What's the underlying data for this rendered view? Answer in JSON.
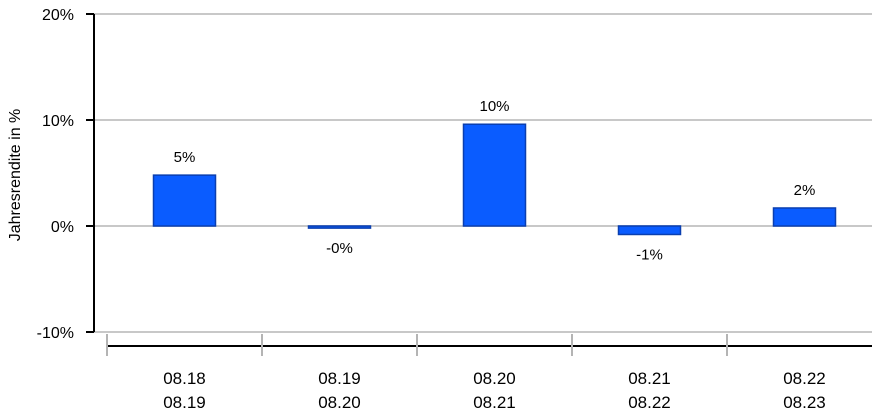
{
  "chart_data": {
    "type": "bar",
    "ylabel": "Jahresrendite in %",
    "ylim": [
      -10,
      20
    ],
    "yticks": [
      {
        "value": -10,
        "label": "-10%"
      },
      {
        "value": 0,
        "label": "0%"
      },
      {
        "value": 10,
        "label": "10%"
      },
      {
        "value": 20,
        "label": "20%"
      }
    ],
    "categories": [
      {
        "line1": "08.18",
        "line2": "08.19"
      },
      {
        "line1": "08.19",
        "line2": "08.20"
      },
      {
        "line1": "08.20",
        "line2": "08.21"
      },
      {
        "line1": "08.21",
        "line2": "08.22"
      },
      {
        "line1": "08.22",
        "line2": "08.23"
      }
    ],
    "values": [
      4.8,
      -0.2,
      9.6,
      -0.8,
      1.7
    ],
    "value_labels": [
      "5%",
      "-0%",
      "10%",
      "-1%",
      "2%"
    ],
    "grid": true,
    "colors": {
      "bar_fill": "#0a5cff",
      "bar_stroke": "#0a3fb0",
      "grid": "#c8c8c8",
      "axis": "#000000",
      "tick": "#b4b4b4"
    }
  }
}
